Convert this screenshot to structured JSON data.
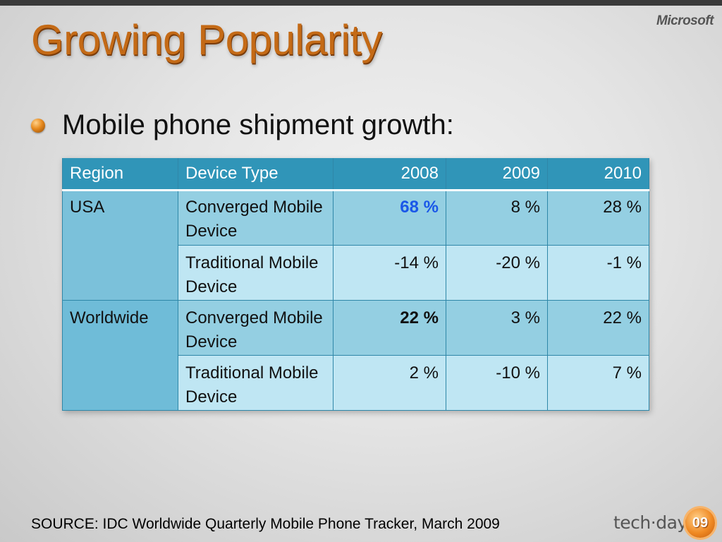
{
  "slide": {
    "title": "Growing Popularity",
    "logo": "Microsoft",
    "bullet": "Mobile phone shipment growth:",
    "source": "SOURCE: IDC Worldwide Quarterly Mobile Phone Tracker, March 2009",
    "footer_brand": "tech·days",
    "footer_badge": "09"
  },
  "table": {
    "headers": [
      "Region",
      "Device Type",
      "2008",
      "2009",
      "2010"
    ],
    "rows": [
      {
        "region": "USA",
        "type": "Converged Mobile Device",
        "y2008": "68 %",
        "y2009": "8 %",
        "y2010": "28 %"
      },
      {
        "region": "",
        "type": "Traditional Mobile Device",
        "y2008": "-14 %",
        "y2009": "-20 %",
        "y2010": "-1 %"
      },
      {
        "region": "Worldwide",
        "type": "Converged Mobile Device",
        "y2008": "22 %",
        "y2009": "3 %",
        "y2010": "22 %"
      },
      {
        "region": "",
        "type": "Traditional Mobile Device",
        "y2008": "2 %",
        "y2009": "-10 %",
        "y2010": "7 %"
      }
    ]
  },
  "colors": {
    "title": "#c46a16",
    "header_bg": "#3095b8",
    "highlight_blue": "#1a57e8"
  }
}
